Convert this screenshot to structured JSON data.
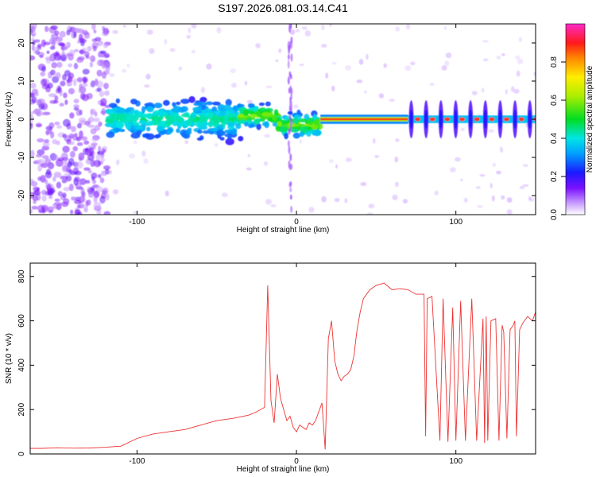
{
  "title": "S197.2026.081.03.14.C41",
  "chart_data": [
    {
      "type": "heatmap",
      "title": "S197.2026.081.03.14.C41",
      "xlabel": "Height of straight line (km)",
      "ylabel": "Frequency (Hz)",
      "xlim": [
        -167,
        150
      ],
      "ylim": [
        -25,
        25
      ],
      "xticks": [
        -100,
        0,
        100
      ],
      "yticks": [
        -20,
        -10,
        0,
        10,
        20
      ],
      "colorbar": {
        "label": "Normalized spectral amplitude",
        "range": [
          0,
          1
        ],
        "ticks": [
          "0.0",
          "0.2",
          "0.4",
          "0.6",
          "0.8"
        ]
      },
      "features": [
        {
          "name": "scattered noise",
          "x_range": [
            -167,
            -118
          ],
          "freq_range": [
            -25,
            25
          ],
          "amplitude": 0.15
        },
        {
          "name": "turbulent echo",
          "x_range": [
            -118,
            -35
          ],
          "freq_center": 0,
          "freq_spread": 7,
          "amplitude": 0.35
        },
        {
          "name": "transition",
          "x_range": [
            -35,
            15
          ],
          "freq_center": 0,
          "freq_spread": 4,
          "amplitude": 0.5
        },
        {
          "name": "steady carrier",
          "x_range": [
            15,
            70
          ],
          "freq_center": 0,
          "freq_spread": 0.8,
          "amplitude": 0.95
        },
        {
          "name": "pulsed carrier",
          "x_range": [
            70,
            150
          ],
          "freq_center": 0,
          "freq_spread": 1.5,
          "amplitude": 0.9
        },
        {
          "name": "vertical streak",
          "x_range": [
            -5,
            -3
          ],
          "freq_range": [
            -25,
            25
          ],
          "amplitude": 0.2
        }
      ]
    },
    {
      "type": "line",
      "title": "",
      "xlabel": "Height of straight line (km)",
      "ylabel": "SNR (10 * v/v)",
      "xlim": [
        -167,
        150
      ],
      "ylim": [
        0,
        860
      ],
      "xticks": [
        -100,
        0,
        100
      ],
      "yticks": [
        0,
        200,
        400,
        600,
        800
      ],
      "color": "#ee3333",
      "series": [
        {
          "name": "SNR",
          "x": [
            -167,
            -160,
            -150,
            -140,
            -130,
            -120,
            -110,
            -100,
            -90,
            -80,
            -70,
            -60,
            -50,
            -40,
            -30,
            -25,
            -20,
            -18,
            -16,
            -14,
            -12,
            -10,
            -8,
            -6,
            -4,
            -2,
            0,
            2,
            4,
            6,
            8,
            10,
            12,
            14,
            16,
            18,
            20,
            22,
            24,
            26,
            28,
            30,
            32,
            34,
            36,
            38,
            40,
            42,
            44,
            46,
            48,
            50,
            55,
            60,
            65,
            70,
            75,
            80,
            81,
            82,
            85,
            90,
            92,
            95,
            98,
            100,
            103,
            106,
            110,
            113,
            117,
            118,
            119,
            120,
            122,
            125,
            127,
            129,
            130,
            132,
            134,
            136,
            137,
            138,
            140,
            142,
            145,
            148,
            150
          ],
          "values": [
            25,
            25,
            28,
            26,
            27,
            30,
            35,
            70,
            90,
            100,
            110,
            130,
            150,
            160,
            175,
            190,
            210,
            760,
            240,
            140,
            360,
            250,
            200,
            150,
            170,
            120,
            100,
            130,
            120,
            110,
            140,
            130,
            150,
            190,
            230,
            20,
            520,
            600,
            420,
            360,
            330,
            350,
            360,
            380,
            440,
            560,
            640,
            700,
            720,
            740,
            750,
            760,
            770,
            740,
            745,
            740,
            720,
            720,
            80,
            700,
            710,
            60,
            700,
            55,
            660,
            60,
            690,
            60,
            700,
            60,
            610,
            50,
            620,
            60,
            600,
            610,
            60,
            580,
            550,
            70,
            560,
            580,
            600,
            80,
            560,
            590,
            620,
            600,
            640
          ]
        }
      ]
    }
  ]
}
